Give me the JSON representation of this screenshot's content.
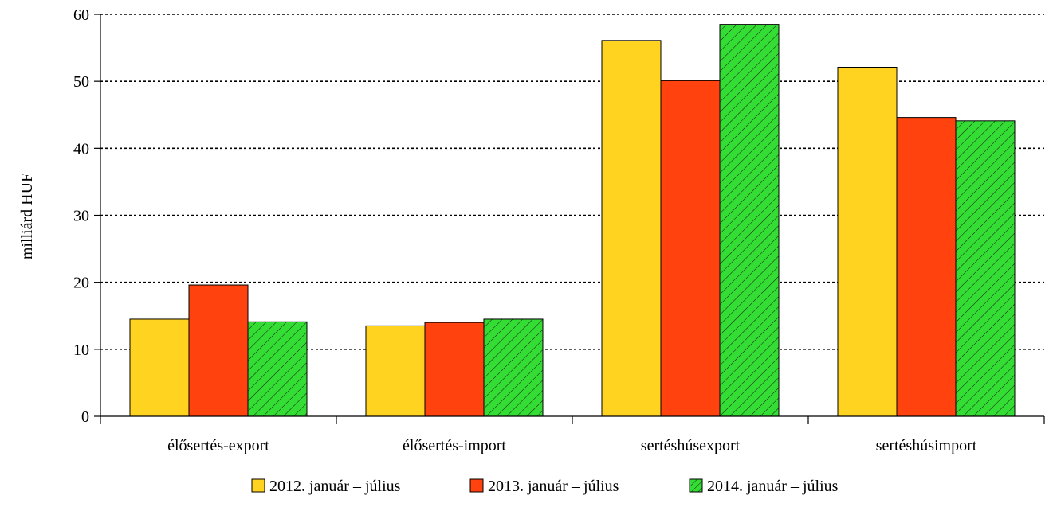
{
  "chart_data": {
    "type": "bar",
    "categories": [
      "élősertés-export",
      "élősertés-import",
      "sertéshúsexport",
      "sertéshúsimport"
    ],
    "series": [
      {
        "name": "2012. január – július",
        "values": [
          14.5,
          13.5,
          56.1,
          52.1
        ],
        "color": "#FFD320",
        "pattern": "solid"
      },
      {
        "name": "2013. január – július",
        "values": [
          19.6,
          14.0,
          50.1,
          44.6
        ],
        "color": "#FF420E",
        "pattern": "solid"
      },
      {
        "name": "2014. január – július",
        "values": [
          14.1,
          14.5,
          58.5,
          44.1
        ],
        "color": "#33DD33",
        "pattern": "diagonal-hatch"
      }
    ],
    "ylabel": "milliárd HUF",
    "xlabel": "",
    "ylim": [
      0,
      60
    ],
    "yticks": [
      0,
      10,
      20,
      30,
      40,
      50,
      60
    ],
    "grid": "horizontal-dotted",
    "legend_position": "bottom-center"
  }
}
